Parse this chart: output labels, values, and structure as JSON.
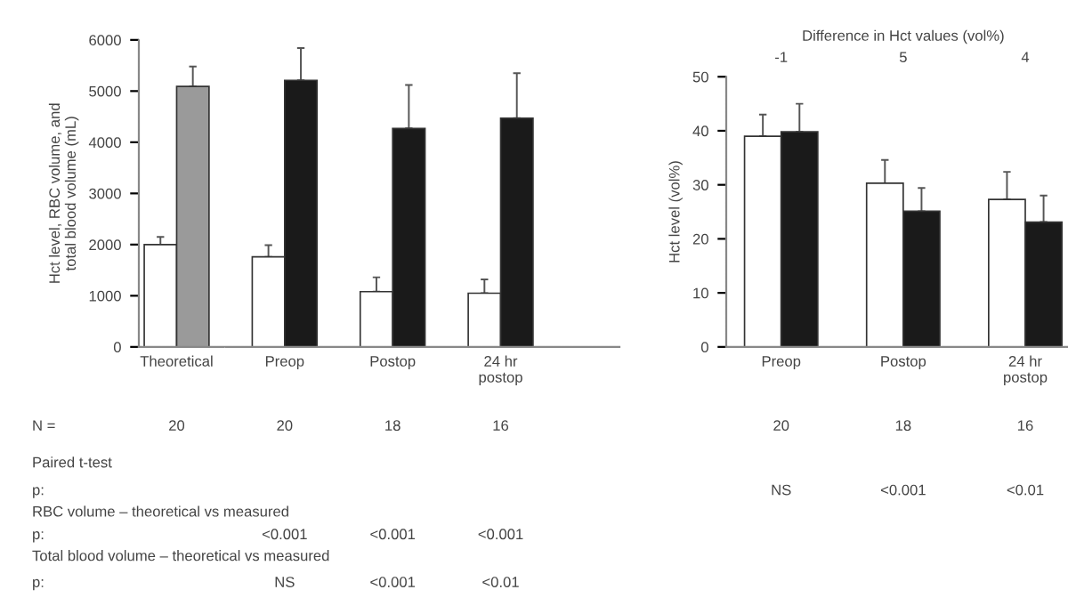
{
  "chart_data": [
    {
      "type": "bar",
      "categories": [
        "Theoretical",
        "Preop",
        "Postop",
        "24 hr\npostop"
      ],
      "series": [
        {
          "color": "#ffffff",
          "values": [
            2000,
            1760,
            1080,
            1050
          ],
          "errors": [
            [
              2000,
              2150
            ],
            [
              1760,
              1990
            ],
            [
              1080,
              1360
            ],
            [
              1050,
              1320
            ]
          ]
        },
        {
          "colors": [
            "#9a9a9a",
            "#1a1a1a",
            "#1a1a1a",
            "#1a1a1a"
          ],
          "values": [
            5090,
            5210,
            4270,
            4470
          ],
          "errors": [
            [
              5090,
              5480
            ],
            [
              5210,
              5840
            ],
            [
              4270,
              5120
            ],
            [
              4470,
              5350
            ]
          ]
        }
      ],
      "ylabel": "Hct level, RBC volume, and\ntotal blood volume (mL)",
      "ylim": [
        0,
        6000
      ],
      "yticks": [
        0,
        1000,
        2000,
        3000,
        4000,
        5000,
        6000
      ],
      "grid": false,
      "legend": false,
      "annotations": [
        "N =",
        "20",
        "20",
        "18",
        "16",
        "Paired t-test",
        "p:",
        "RBC volume – theoretical vs measured",
        "p:",
        "<0.001",
        "<0.001",
        "<0.001",
        "Total blood volume – theoretical vs measured",
        "p:",
        "NS",
        "<0.001",
        "<0.01"
      ]
    },
    {
      "type": "bar",
      "categories": [
        "Preop",
        "Postop",
        "24 hr\npostop"
      ],
      "series": [
        {
          "color": "#ffffff",
          "values": [
            39,
            30.3,
            27.3
          ],
          "errors": [
            [
              39,
              43
            ],
            [
              30.3,
              34.6
            ],
            [
              27.3,
              32.4
            ]
          ]
        },
        {
          "color": "#1a1a1a",
          "values": [
            39.8,
            25.1,
            23.1
          ],
          "errors": [
            [
              39.8,
              45
            ],
            [
              25.1,
              29.4
            ],
            [
              23.1,
              28
            ]
          ]
        }
      ],
      "ylabel": "Hct level (vol%)",
      "ylim": [
        0,
        50
      ],
      "yticks": [
        0,
        10,
        20,
        30,
        40,
        50
      ],
      "grid": false,
      "legend": false,
      "annotations": [
        "Difference in Hct values (vol%)",
        "-1",
        "5",
        "4",
        "20",
        "18",
        "16",
        "NS",
        "<0.001",
        "<0.01"
      ]
    }
  ]
}
